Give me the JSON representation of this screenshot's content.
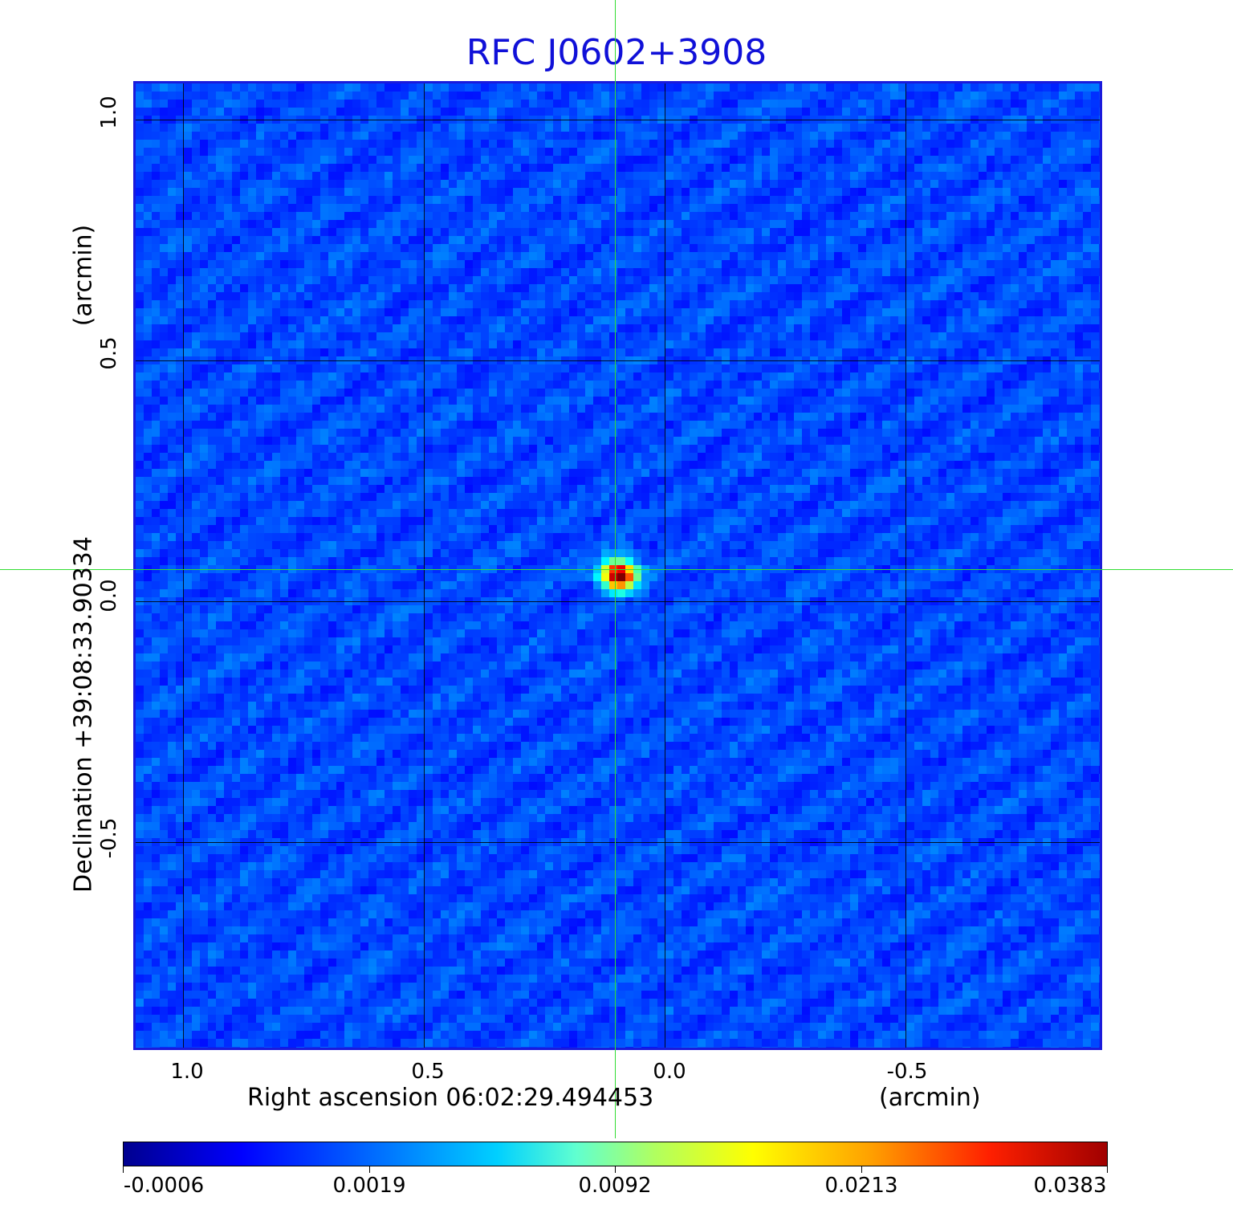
{
  "title": "RFC J0602+3908",
  "x_axis": {
    "label": "Right ascension  06:02:29.494453",
    "unit": "(arcmin)",
    "ticks": [
      "1.0",
      "0.5",
      "0.0",
      "-0.5"
    ]
  },
  "y_axis": {
    "label": "Declination  +39:08:33.90334",
    "unit": "(arcmin)",
    "ticks": [
      "1.0",
      "0.5",
      "0.0",
      "-0.5"
    ]
  },
  "colorbar": {
    "ticks": [
      "-0.0006",
      "0.0019",
      "0.0092",
      "0.0213",
      "0.0383"
    ],
    "colormap": "jet"
  },
  "colors": {
    "title": "#1010d8",
    "frame": "#1a1adc",
    "crosshair": "#33dd33",
    "grid": "#000000"
  }
}
